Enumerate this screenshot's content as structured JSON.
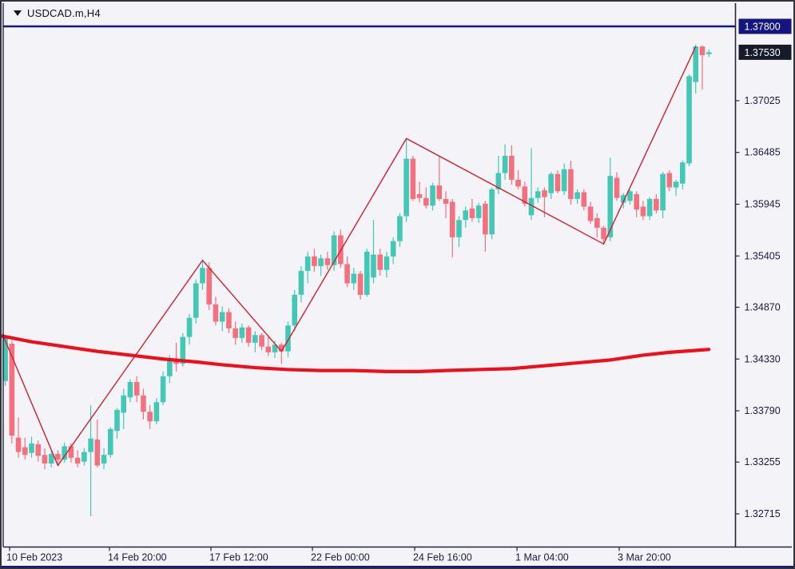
{
  "window": {
    "title": "USDCAD.m,H4"
  },
  "chart_data": {
    "type": "candlestick",
    "symbol": "USDCAD.m",
    "timeframe": "H4",
    "title": "USDCAD.m,H4",
    "legend_position": "none",
    "grid": false,
    "price_axis": {
      "side": "right",
      "ticks": [
        1.37025,
        1.36485,
        1.35945,
        1.35405,
        1.3487,
        1.3433,
        1.3379,
        1.33255,
        1.32715
      ],
      "range": [
        1.32715,
        1.378
      ],
      "hline_label": "1.37800",
      "bid_label": "1.37530"
    },
    "time_axis": {
      "ticks": [
        {
          "t": 0.66,
          "label": "10 Feb 2023"
        },
        {
          "t": 15.84,
          "label": "14 Feb 20:00"
        },
        {
          "t": 31.28,
          "label": "17 Feb 12:00"
        },
        {
          "t": 46.71,
          "label": "22 Feb 00:00"
        },
        {
          "t": 62.26,
          "label": "24 Feb 16:00"
        },
        {
          "t": 77.82,
          "label": "1 Mar 04:00"
        },
        {
          "t": 93.37,
          "label": "3 Mar 20:00"
        }
      ]
    },
    "hline_price": 1.378,
    "bid_price": 1.3753,
    "candles_format": "[open, high, low, close]",
    "candles": [
      [
        1.341,
        1.3458,
        1.3405,
        1.3455
      ],
      [
        1.3449,
        1.3452,
        1.3345,
        1.3353
      ],
      [
        1.3351,
        1.3372,
        1.333,
        1.3336
      ],
      [
        1.3341,
        1.3351,
        1.3328,
        1.3333
      ],
      [
        1.3335,
        1.3352,
        1.333,
        1.3345
      ],
      [
        1.3344,
        1.3348,
        1.3326,
        1.3332
      ],
      [
        1.3333,
        1.334,
        1.3318,
        1.3324
      ],
      [
        1.3324,
        1.3338,
        1.332,
        1.3334
      ],
      [
        1.3334,
        1.3338,
        1.3322,
        1.3328
      ],
      [
        1.3328,
        1.3346,
        1.3325,
        1.3342
      ],
      [
        1.3342,
        1.3345,
        1.3325,
        1.333
      ],
      [
        1.333,
        1.3338,
        1.332,
        1.3324
      ],
      [
        1.3326,
        1.334,
        1.3322,
        1.3336
      ],
      [
        1.3336,
        1.3385,
        1.3269,
        1.335
      ],
      [
        1.3349,
        1.337,
        1.332,
        1.3322
      ],
      [
        1.3324,
        1.334,
        1.3318,
        1.3333
      ],
      [
        1.3333,
        1.3362,
        1.333,
        1.336
      ],
      [
        1.3358,
        1.3382,
        1.335,
        1.338
      ],
      [
        1.3377,
        1.3402,
        1.336,
        1.3395
      ],
      [
        1.3393,
        1.3412,
        1.3388,
        1.3409
      ],
      [
        1.3409,
        1.3415,
        1.3388,
        1.3395
      ],
      [
        1.3395,
        1.3402,
        1.337,
        1.3378
      ],
      [
        1.3378,
        1.3385,
        1.336,
        1.3368
      ],
      [
        1.3368,
        1.3392,
        1.3365,
        1.3388
      ],
      [
        1.3388,
        1.342,
        1.3385,
        1.3415
      ],
      [
        1.3415,
        1.3437,
        1.3408,
        1.3432
      ],
      [
        1.3432,
        1.345,
        1.342,
        1.3428
      ],
      [
        1.3428,
        1.346,
        1.3425,
        1.3456
      ],
      [
        1.3456,
        1.348,
        1.3448,
        1.3476
      ],
      [
        1.3476,
        1.3516,
        1.347,
        1.3512
      ],
      [
        1.3512,
        1.3536,
        1.3505,
        1.3528
      ],
      [
        1.3528,
        1.3534,
        1.3484,
        1.349
      ],
      [
        1.349,
        1.3498,
        1.3468,
        1.3472
      ],
      [
        1.3472,
        1.3488,
        1.3462,
        1.3482
      ],
      [
        1.3482,
        1.3486,
        1.346,
        1.3465
      ],
      [
        1.3465,
        1.3472,
        1.3448,
        1.3455
      ],
      [
        1.3455,
        1.347,
        1.345,
        1.3466
      ],
      [
        1.3466,
        1.3468,
        1.3446,
        1.345
      ],
      [
        1.345,
        1.3462,
        1.344,
        1.3458
      ],
      [
        1.3458,
        1.346,
        1.3442,
        1.3446
      ],
      [
        1.3446,
        1.3456,
        1.3436,
        1.344
      ],
      [
        1.344,
        1.3452,
        1.3434,
        1.3448
      ],
      [
        1.3448,
        1.345,
        1.3428,
        1.3441
      ],
      [
        1.3441,
        1.3472,
        1.3435,
        1.3468
      ],
      [
        1.3468,
        1.3505,
        1.3462,
        1.35
      ],
      [
        1.35,
        1.353,
        1.3492,
        1.3525
      ],
      [
        1.3525,
        1.3545,
        1.3512,
        1.354
      ],
      [
        1.354,
        1.3548,
        1.3524,
        1.353
      ],
      [
        1.353,
        1.3542,
        1.352,
        1.3538
      ],
      [
        1.3538,
        1.3545,
        1.3526,
        1.3531
      ],
      [
        1.3531,
        1.3566,
        1.3525,
        1.3562
      ],
      [
        1.3562,
        1.3568,
        1.3528,
        1.3532
      ],
      [
        1.3532,
        1.354,
        1.3508,
        1.3512
      ],
      [
        1.3512,
        1.3528,
        1.3505,
        1.3522
      ],
      [
        1.3522,
        1.3525,
        1.3495,
        1.35
      ],
      [
        1.35,
        1.3548,
        1.3498,
        1.3545
      ],
      [
        1.3518,
        1.3578,
        1.3512,
        1.3542
      ],
      [
        1.3542,
        1.3548,
        1.352,
        1.3526
      ],
      [
        1.3526,
        1.3545,
        1.3518,
        1.354
      ],
      [
        1.354,
        1.356,
        1.3532,
        1.3556
      ],
      [
        1.3556,
        1.3585,
        1.355,
        1.3582
      ],
      [
        1.3582,
        1.3663,
        1.3576,
        1.3642
      ],
      [
        1.3642,
        1.3645,
        1.3598,
        1.36
      ],
      [
        1.3605,
        1.3618,
        1.3596,
        1.3601
      ],
      [
        1.3601,
        1.3612,
        1.359,
        1.3593
      ],
      [
        1.3593,
        1.3617,
        1.3588,
        1.3614
      ],
      [
        1.3614,
        1.3645,
        1.3598,
        1.36
      ],
      [
        1.36,
        1.3608,
        1.358,
        1.3595
      ],
      [
        1.3597,
        1.36,
        1.3539,
        1.356
      ],
      [
        1.356,
        1.3582,
        1.355,
        1.3578
      ],
      [
        1.3578,
        1.3592,
        1.357,
        1.3588
      ],
      [
        1.359,
        1.36,
        1.3576,
        1.358
      ],
      [
        1.358,
        1.3596,
        1.3575,
        1.3593
      ],
      [
        1.3595,
        1.3598,
        1.3545,
        1.3563
      ],
      [
        1.3563,
        1.3612,
        1.3558,
        1.361
      ],
      [
        1.361,
        1.3645,
        1.3605,
        1.3627
      ],
      [
        1.3627,
        1.3657,
        1.362,
        1.3645
      ],
      [
        1.3645,
        1.3656,
        1.3615,
        1.362
      ],
      [
        1.362,
        1.363,
        1.361,
        1.3613
      ],
      [
        1.3613,
        1.3618,
        1.3592,
        1.3595
      ],
      [
        1.3583,
        1.3653,
        1.3578,
        1.3601
      ],
      [
        1.3601,
        1.3612,
        1.3596,
        1.3608
      ],
      [
        1.3609,
        1.3612,
        1.3581,
        1.3602
      ],
      [
        1.3606,
        1.3628,
        1.36,
        1.3626
      ],
      [
        1.3626,
        1.363,
        1.3606,
        1.3608
      ],
      [
        1.3608,
        1.3637,
        1.3604,
        1.3631
      ],
      [
        1.3631,
        1.364,
        1.3594,
        1.36
      ],
      [
        1.36,
        1.361,
        1.3595,
        1.3607
      ],
      [
        1.3607,
        1.361,
        1.3588,
        1.3592
      ],
      [
        1.3592,
        1.3597,
        1.3574,
        1.3577
      ],
      [
        1.358,
        1.3585,
        1.356,
        1.357
      ],
      [
        1.357,
        1.3572,
        1.3553,
        1.3558
      ],
      [
        1.356,
        1.3643,
        1.3556,
        1.3624
      ],
      [
        1.3622,
        1.3628,
        1.3598,
        1.3601
      ],
      [
        1.3596,
        1.3606,
        1.359,
        1.3604
      ],
      [
        1.3598,
        1.361,
        1.3594,
        1.3608
      ],
      [
        1.3605,
        1.3608,
        1.3581,
        1.3589
      ],
      [
        1.3592,
        1.3598,
        1.3578,
        1.3582
      ],
      [
        1.3582,
        1.3602,
        1.3578,
        1.36
      ],
      [
        1.36,
        1.3605,
        1.3585,
        1.3588
      ],
      [
        1.3588,
        1.3628,
        1.358,
        1.3626
      ],
      [
        1.3627,
        1.363,
        1.3608,
        1.3612
      ],
      [
        1.3612,
        1.362,
        1.3603,
        1.3618
      ],
      [
        1.3616,
        1.364,
        1.361,
        1.3638
      ],
      [
        1.3637,
        1.373,
        1.3634,
        1.3728
      ],
      [
        1.3722,
        1.3761,
        1.371,
        1.3759
      ],
      [
        1.3759,
        1.376,
        1.3714,
        1.375
      ],
      [
        1.3751,
        1.3756,
        1.3748,
        1.3753
      ]
    ],
    "overlays": {
      "zigzag_pivots": [
        [
          -0.3,
          1.3457
        ],
        [
          8,
          1.3322
        ],
        [
          30,
          1.3536
        ],
        [
          42,
          1.3441
        ],
        [
          61,
          1.3663
        ],
        [
          91,
          1.3553
        ],
        [
          105,
          1.3759
        ]
      ],
      "moving_average": [
        [
          -0.5,
          1.3457
        ],
        [
          4,
          1.3451
        ],
        [
          9,
          1.3446
        ],
        [
          14,
          1.3441
        ],
        [
          19,
          1.3437
        ],
        [
          24,
          1.3433
        ],
        [
          29,
          1.343
        ],
        [
          33,
          1.3427
        ],
        [
          38,
          1.3424
        ],
        [
          43,
          1.3422
        ],
        [
          48,
          1.3421
        ],
        [
          53,
          1.3421
        ],
        [
          58,
          1.342
        ],
        [
          63,
          1.342
        ],
        [
          67,
          1.3421
        ],
        [
          72,
          1.3422
        ],
        [
          77,
          1.3423
        ],
        [
          82,
          1.3426
        ],
        [
          87,
          1.3429
        ],
        [
          92,
          1.3432
        ],
        [
          97,
          1.3437
        ],
        [
          101,
          1.344
        ],
        [
          107,
          1.3443
        ]
      ]
    },
    "colors": {
      "background": "#f4f4f8",
      "bull": "#42c8b4",
      "bear": "#f4707e",
      "zigzag": "#d21f2f",
      "moving_average": "#f00d1c",
      "hline": "#15157f",
      "hline_label_bg": "#15157f",
      "bid_label_bg": "#171a2b",
      "label_text": "#ffffff",
      "axis_line": "#23233a",
      "axis_text": "#1a1a3c"
    }
  }
}
